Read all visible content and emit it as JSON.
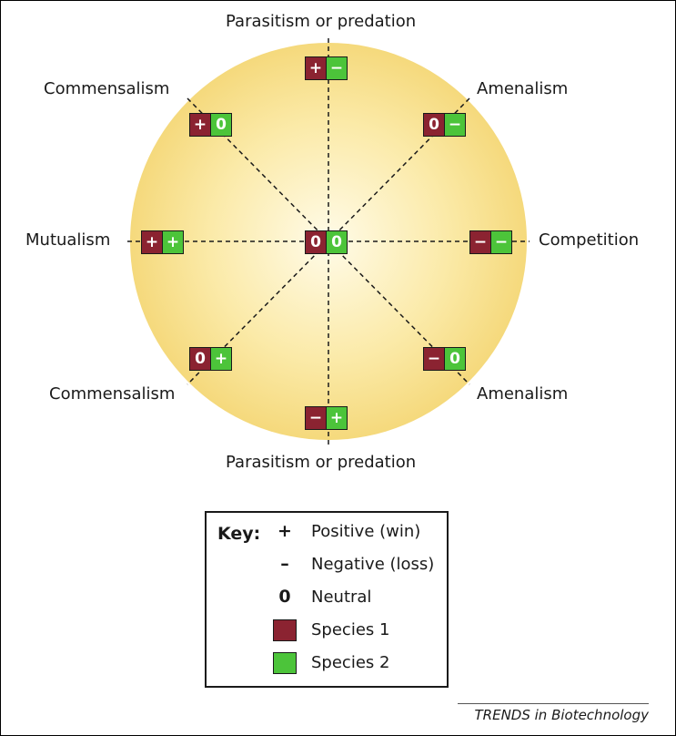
{
  "colors": {
    "species1": "#8b2331",
    "species2": "#4cc43a",
    "circle_center": "#fffbe8",
    "circle_edge": "#f5d97c"
  },
  "diagram": {
    "labels": {
      "top": "Parasitism or predation",
      "bottom": "Parasitism or predation",
      "top_left": "Commensalism",
      "top_right": "Amenalism",
      "left": "Mutualism",
      "right": "Competition",
      "bottom_left": "Commensalism",
      "bottom_right": "Amenalism"
    },
    "pairs": {
      "top": [
        "+",
        "−"
      ],
      "top_left": [
        "+",
        "0"
      ],
      "top_right": [
        "0",
        "−"
      ],
      "left": [
        "+",
        "+"
      ],
      "center": [
        "0",
        "0"
      ],
      "right": [
        "−",
        "−"
      ],
      "bottom_left": [
        "0",
        "+"
      ],
      "bottom_right": [
        "−",
        "0"
      ],
      "bottom": [
        "−",
        "+"
      ]
    }
  },
  "key": {
    "title": "Key:",
    "rows": [
      {
        "symbol": "+",
        "text": "Positive (win)"
      },
      {
        "symbol": "–",
        "text": "Negative (loss)"
      },
      {
        "symbol": "0",
        "text": "Neutral"
      },
      {
        "text": "Species 1"
      },
      {
        "text": "Species 2"
      }
    ]
  },
  "source": "TRENDS in Biotechnology"
}
